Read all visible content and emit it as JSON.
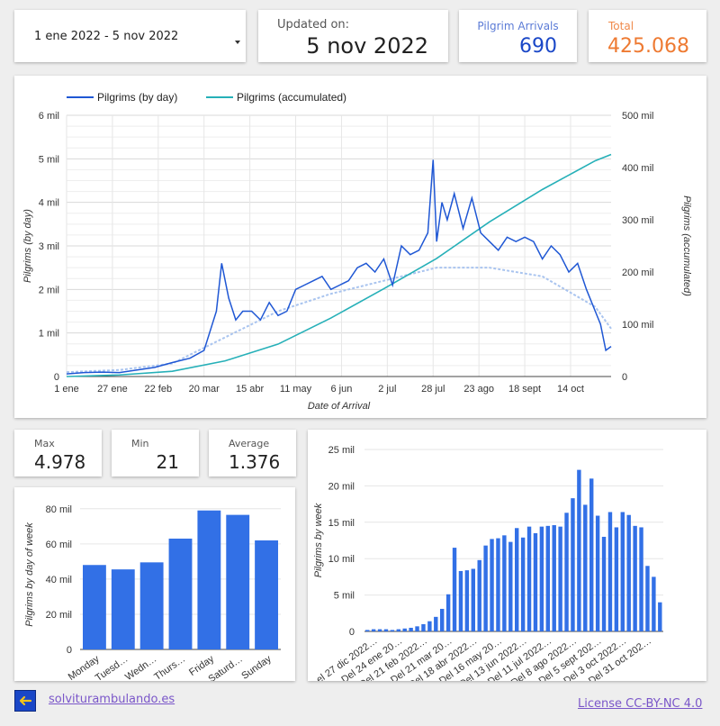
{
  "header": {
    "date_range": "1 ene 2022 - 5 nov 2022",
    "updated_label": "Updated on:",
    "updated_value": "5 nov 2022",
    "arrivals_label": "Pilgrim Arrivals",
    "arrivals_value": "690",
    "total_label": "Total",
    "total_value": "425.068"
  },
  "stats": {
    "max_label": "Max",
    "max_value": "4.978",
    "min_label": "Min",
    "min_value": "21",
    "avg_label": "Average",
    "avg_value": "1.376"
  },
  "footer": {
    "site_link": "solviturambulando.es",
    "license": "License CC-BY-NC 4.0",
    "back_icon": "arrow-left-icon"
  },
  "colors": {
    "daily": "#1f57d4",
    "accumulated": "#26b0b8",
    "trend": "#a9c4ef",
    "bars": "#3270e6",
    "arrivals": "#1a47c7",
    "total": "#ee7a32"
  },
  "chart_data": [
    {
      "type": "line",
      "xlabel": "Date of Arrival",
      "ylabel": "Pilgrims (by day)",
      "y2label": "Pilgrims (accumulated)",
      "x_ticks": [
        "1 ene",
        "27 ene",
        "22 feb",
        "20 mar",
        "15 abr",
        "11 may",
        "6 jun",
        "2 jul",
        "28 jul",
        "23 ago",
        "18 sept",
        "14 oct"
      ],
      "y_ticks": [
        "0",
        "1 mil",
        "2 mil",
        "3 mil",
        "4 mil",
        "5 mil",
        "6 mil"
      ],
      "y2_ticks": [
        "0",
        "100 mil",
        "200 mil",
        "300 mil",
        "400 mil",
        "500 mil"
      ],
      "ylim": [
        0,
        6000
      ],
      "y2lim": [
        0,
        500000
      ],
      "legend_position": "top-left",
      "series": [
        {
          "name": "Pilgrims (by day)",
          "axis": "left",
          "x": [
            0,
            10,
            20,
            30,
            40,
            50,
            60,
            70,
            78,
            85,
            88,
            92,
            96,
            100,
            105,
            110,
            115,
            120,
            125,
            130,
            135,
            140,
            145,
            150,
            155,
            160,
            165,
            170,
            175,
            180,
            185,
            190,
            195,
            200,
            205,
            208,
            210,
            213,
            216,
            220,
            225,
            230,
            235,
            240,
            245,
            250,
            255,
            260,
            265,
            270,
            275,
            280,
            285,
            290,
            295,
            300,
            303,
            306,
            309
          ],
          "values": [
            60,
            90,
            100,
            90,
            150,
            210,
            320,
            420,
            600,
            1500,
            2600,
            1800,
            1300,
            1500,
            1500,
            1300,
            1700,
            1400,
            1500,
            2000,
            2100,
            2200,
            2300,
            2000,
            2100,
            2200,
            2500,
            2600,
            2400,
            2700,
            2100,
            3000,
            2800,
            2900,
            3300,
            4978,
            3100,
            4000,
            3600,
            4200,
            3400,
            4100,
            3300,
            3100,
            2900,
            3200,
            3100,
            3200,
            3100,
            2700,
            3000,
            2800,
            2400,
            2600,
            2000,
            1500,
            1200,
            600,
            690
          ]
        },
        {
          "name": "Pilgrims (accumulated)",
          "axis": "right",
          "x": [
            0,
            30,
            60,
            90,
            120,
            150,
            180,
            210,
            240,
            270,
            300,
            309
          ],
          "values": [
            0,
            3000,
            10000,
            30000,
            62000,
            112000,
            168000,
            226000,
            296000,
            358000,
            413000,
            425068
          ]
        },
        {
          "axis": "left",
          "role": "trend",
          "x": [
            0,
            30,
            60,
            90,
            120,
            150,
            180,
            210,
            240,
            270,
            300,
            309
          ],
          "values": [
            100,
            150,
            300,
            900,
            1500,
            1900,
            2200,
            2500,
            2500,
            2300,
            1600,
            1100
          ]
        }
      ]
    },
    {
      "type": "bar",
      "ylabel": "Pilgrims by day of week",
      "categories": [
        "Monday",
        "Tuesd…",
        "Wedn…",
        "Thurs…",
        "Friday",
        "Saturd…",
        "Sunday"
      ],
      "values": [
        48000,
        45500,
        49500,
        63000,
        79000,
        76500,
        62000
      ],
      "y_ticks": [
        "0",
        "20 mil",
        "40 mil",
        "60 mil",
        "80 mil"
      ],
      "ylim": [
        0,
        85000
      ]
    },
    {
      "type": "bar",
      "ylabel": "Pilgrims by week",
      "tick_labels": [
        "el 27 dic 2022…",
        "Del 24 ene 20…",
        "Del 21 feb 2022…",
        "Del 21 mar 20…",
        "Del 18 abr 2022…",
        "Del 16 may 20…",
        "Del 13 jun 2022…",
        "Del 11 jul 2022…",
        "Del 8 ago 2022…",
        "Del 5 sept 202…",
        "Del 3 oct 2022…",
        "Del 31 oct 202…"
      ],
      "values": [
        200,
        300,
        300,
        300,
        200,
        300,
        400,
        500,
        700,
        1000,
        1400,
        2000,
        3100,
        5100,
        11500,
        8300,
        8400,
        8600,
        9800,
        11800,
        12700,
        12800,
        13200,
        12300,
        14200,
        12900,
        14400,
        13500,
        14400,
        14500,
        14600,
        14400,
        16300,
        18300,
        22200,
        17400,
        21000,
        15900,
        13000,
        16400,
        14300,
        16400,
        16000,
        14500,
        14300,
        9000,
        7500,
        4000
      ],
      "y_ticks": [
        "0",
        "5 mil",
        "10 mil",
        "15 mil",
        "20 mil",
        "25 mil"
      ],
      "ylim": [
        0,
        25000
      ]
    }
  ]
}
